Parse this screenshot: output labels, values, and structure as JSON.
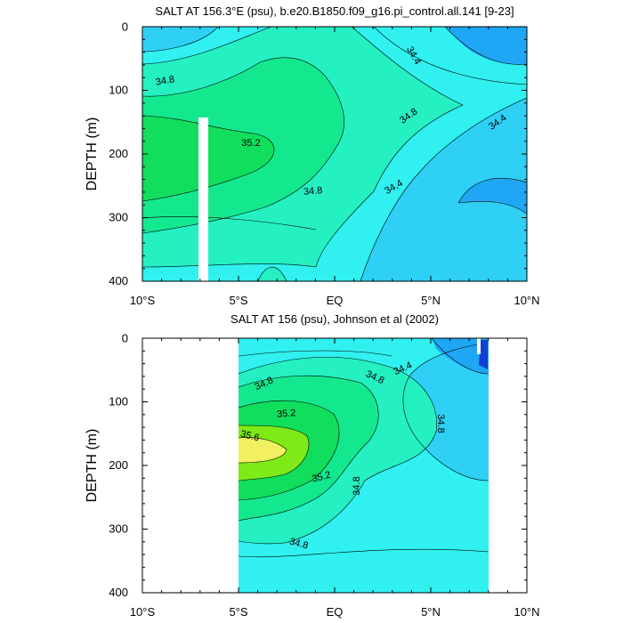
{
  "chart_data": [
    {
      "type": "contour",
      "title": "SALT AT 156.3°E (psu), b.e20.B1850.f09_g16.pi_control.all.141 [9-23]",
      "ylabel": "DEPTH (m)",
      "xlabel": "",
      "xlim": [
        -10,
        10
      ],
      "ylim": [
        400,
        0
      ],
      "x_ticks": [
        "10°S",
        "5°S",
        "EQ",
        "5°N",
        "10°N"
      ],
      "y_ticks": [
        "0",
        "100",
        "200",
        "300",
        "400"
      ],
      "contour_levels": [
        34.0,
        34.2,
        34.4,
        34.6,
        34.8,
        35.0,
        35.2,
        35.4,
        35.6
      ],
      "contour_labels": [
        "34.8",
        "35.2",
        "34.8",
        "34.4",
        "34.4",
        "34.8",
        "34.4"
      ],
      "colors": [
        "#0a78e8",
        "#1fa6f5",
        "#2fd0f5",
        "#30f0f0",
        "#24f0c2",
        "#14e88e",
        "#10de5c",
        "#7eea18",
        "#f0f060"
      ]
    },
    {
      "type": "contour",
      "title": "SALT AT 156 (psu), Johnson et al (2002)",
      "ylabel": "DEPTH (m)",
      "xlabel": "",
      "xlim": [
        -10,
        10
      ],
      "ylim": [
        400,
        0
      ],
      "data_x_range": [
        -5,
        8
      ],
      "x_ticks": [
        "10°S",
        "5°S",
        "EQ",
        "5°N",
        "10°N"
      ],
      "y_ticks": [
        "0",
        "100",
        "200",
        "300",
        "400"
      ],
      "contour_levels": [
        34.0,
        34.2,
        34.4,
        34.6,
        34.8,
        35.0,
        35.2,
        35.4,
        35.6
      ],
      "contour_labels": [
        "34.8",
        "34.8",
        "34.4",
        "35.2",
        "35.6",
        "34.8",
        "35.2",
        "34.8",
        "34.8"
      ],
      "colors": [
        "#1060e0",
        "#1fa6f5",
        "#2fd0f5",
        "#30f0f0",
        "#24f0c2",
        "#14e88e",
        "#10de5c",
        "#7eea18",
        "#f0f060"
      ]
    }
  ]
}
